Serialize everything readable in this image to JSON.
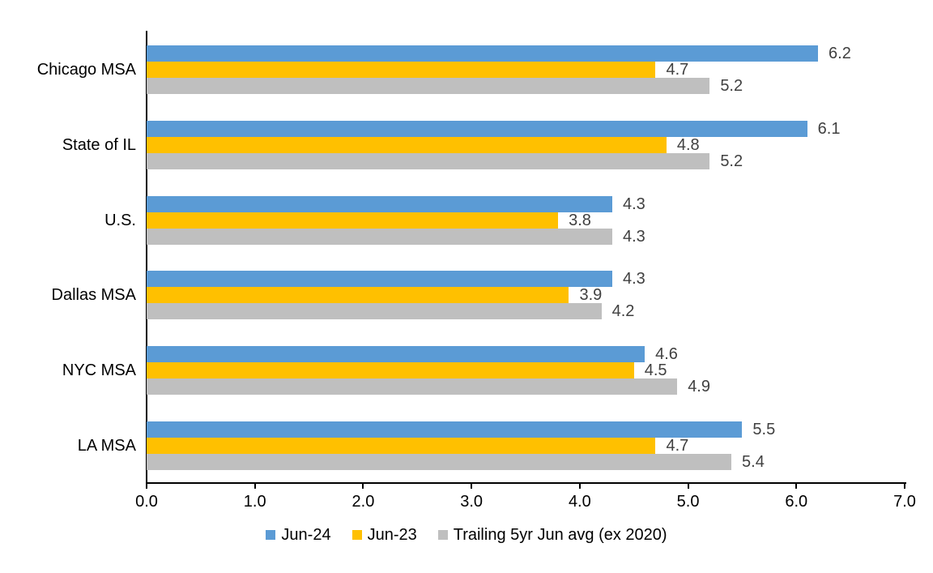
{
  "chart_data": {
    "type": "bar",
    "orientation": "horizontal",
    "title": "",
    "xlabel": "",
    "ylabel": "",
    "categories": [
      "Chicago MSA",
      "State of IL",
      "U.S.",
      "Dallas MSA",
      "NYC MSA",
      "LA MSA"
    ],
    "series": [
      {
        "name": "Jun-24",
        "color": "#5B9BD5",
        "values": [
          6.2,
          6.1,
          4.3,
          4.3,
          4.6,
          5.5
        ]
      },
      {
        "name": "Jun-23",
        "color": "#FFC000",
        "values": [
          4.7,
          4.8,
          3.8,
          3.9,
          4.5,
          4.7
        ]
      },
      {
        "name": "Trailing 5yr Jun avg (ex 2020)",
        "color": "#BFBFBF",
        "values": [
          5.2,
          5.2,
          4.3,
          4.2,
          4.9,
          5.4
        ]
      }
    ],
    "xlim": [
      0,
      7
    ],
    "x_ticks": [
      "0.0",
      "1.0",
      "2.0",
      "3.0",
      "4.0",
      "5.0",
      "6.0",
      "7.0"
    ],
    "data_labels_shown": true,
    "data_label_color": "#404040",
    "axis_color": "#000000",
    "background_color": "#FFFFFF",
    "grid": false,
    "legend_position": "bottom"
  }
}
